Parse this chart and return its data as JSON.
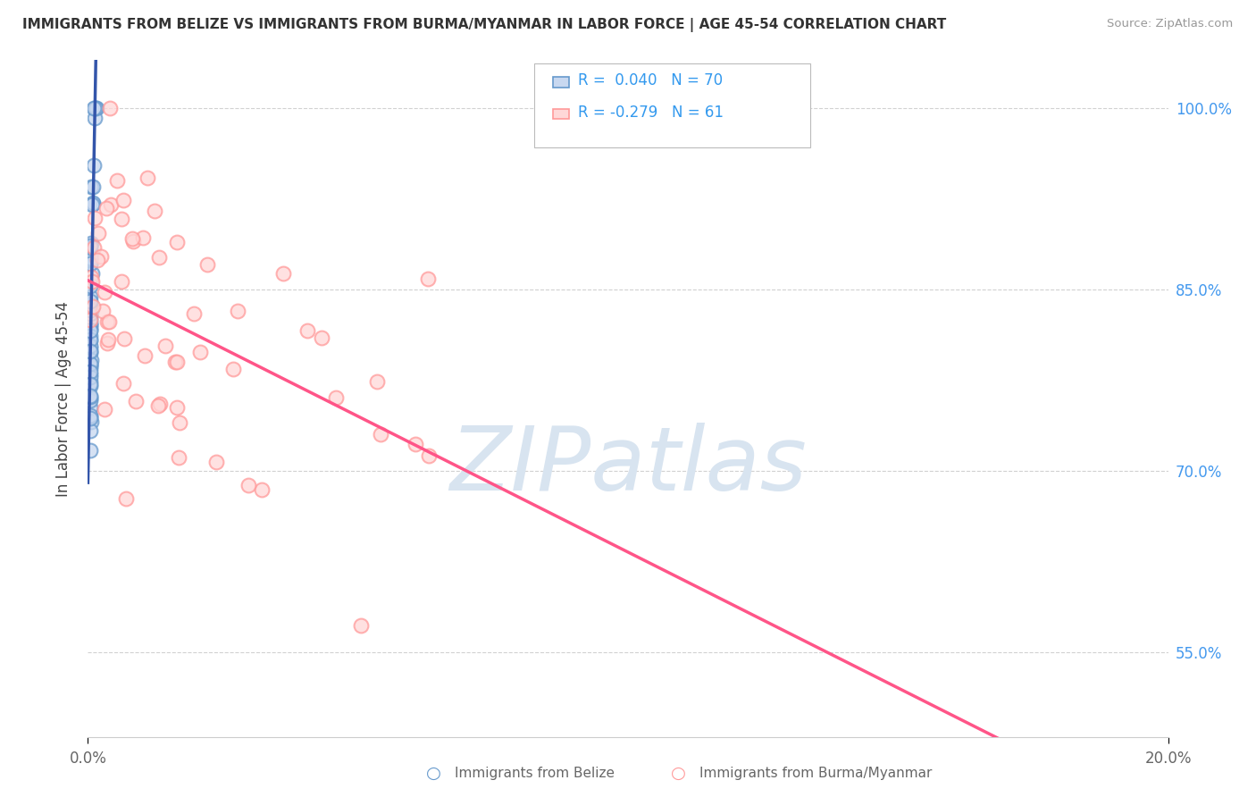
{
  "title": "IMMIGRANTS FROM BELIZE VS IMMIGRANTS FROM BURMA/MYANMAR IN LABOR FORCE | AGE 45-54 CORRELATION CHART",
  "source": "Source: ZipAtlas.com",
  "ylabel": "In Labor Force | Age 45-54",
  "xlim": [
    0.0,
    20.0
  ],
  "ylim": [
    48.0,
    104.0
  ],
  "yticks": [
    55.0,
    70.0,
    85.0,
    100.0
  ],
  "ytick_labels": [
    "55.0%",
    "70.0%",
    "85.0%",
    "100.0%"
  ],
  "belize_R": 0.04,
  "belize_N": 70,
  "burma_R": -0.279,
  "burma_N": 61,
  "belize_face_color": "#C8D8F0",
  "belize_edge_color": "#6699CC",
  "burma_face_color": "#FFD8D8",
  "burma_edge_color": "#FF9999",
  "belize_trend_color": "#3355AA",
  "burma_trend_color": "#FF5588",
  "grid_color": "#CCCCCC",
  "background_color": "#FFFFFF",
  "title_color": "#333333",
  "source_color": "#999999",
  "axis_label_color": "#444444",
  "right_tick_color": "#4499EE",
  "bottom_legend_color": "#666666",
  "legend_r_color": "#3399EE",
  "watermark_color": "#D8E4F0",
  "watermark_text_color": "#C0CEDC"
}
